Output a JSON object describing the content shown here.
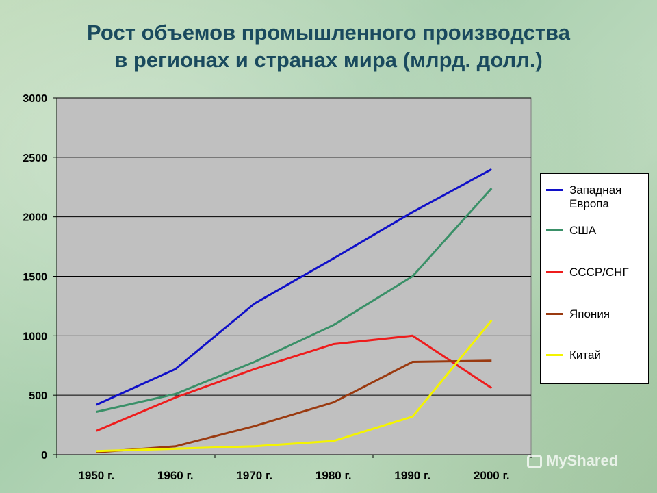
{
  "title_lines": [
    "Рост объемов промышленного производства",
    "в регионах и странах мира (млрд. долл.)"
  ],
  "watermark": "MyShared",
  "chart_data": {
    "type": "line",
    "title": "Рост объемов промышленного производства в регионах и странах мира (млрд. долл.)",
    "categories": [
      "1950 г.",
      "1960 г.",
      "1970 г.",
      "1980 г.",
      "1990 г.",
      "2000 г."
    ],
    "yticks": [
      "0",
      "500",
      "1000",
      "1500",
      "2000",
      "2500",
      "3000"
    ],
    "ylim": [
      0,
      3000
    ],
    "grid": true,
    "legend_position": "right",
    "plot_background": "#c0c0c0",
    "series": [
      {
        "name": "Западная Европа",
        "color": "#1010c8",
        "values": [
          420,
          720,
          1270,
          1650,
          2040,
          2400
        ]
      },
      {
        "name": "США",
        "color": "#3a9068",
        "values": [
          360,
          510,
          780,
          1090,
          1500,
          2240
        ]
      },
      {
        "name": "СССР/СНГ",
        "color": "#ee1c1c",
        "values": [
          200,
          480,
          720,
          930,
          1000,
          560
        ]
      },
      {
        "name": "Япония",
        "color": "#9a3a10",
        "values": [
          20,
          70,
          240,
          440,
          780,
          790
        ]
      },
      {
        "name": "Китай",
        "color": "#f4f400",
        "values": [
          30,
          50,
          70,
          115,
          320,
          1130
        ]
      }
    ]
  }
}
